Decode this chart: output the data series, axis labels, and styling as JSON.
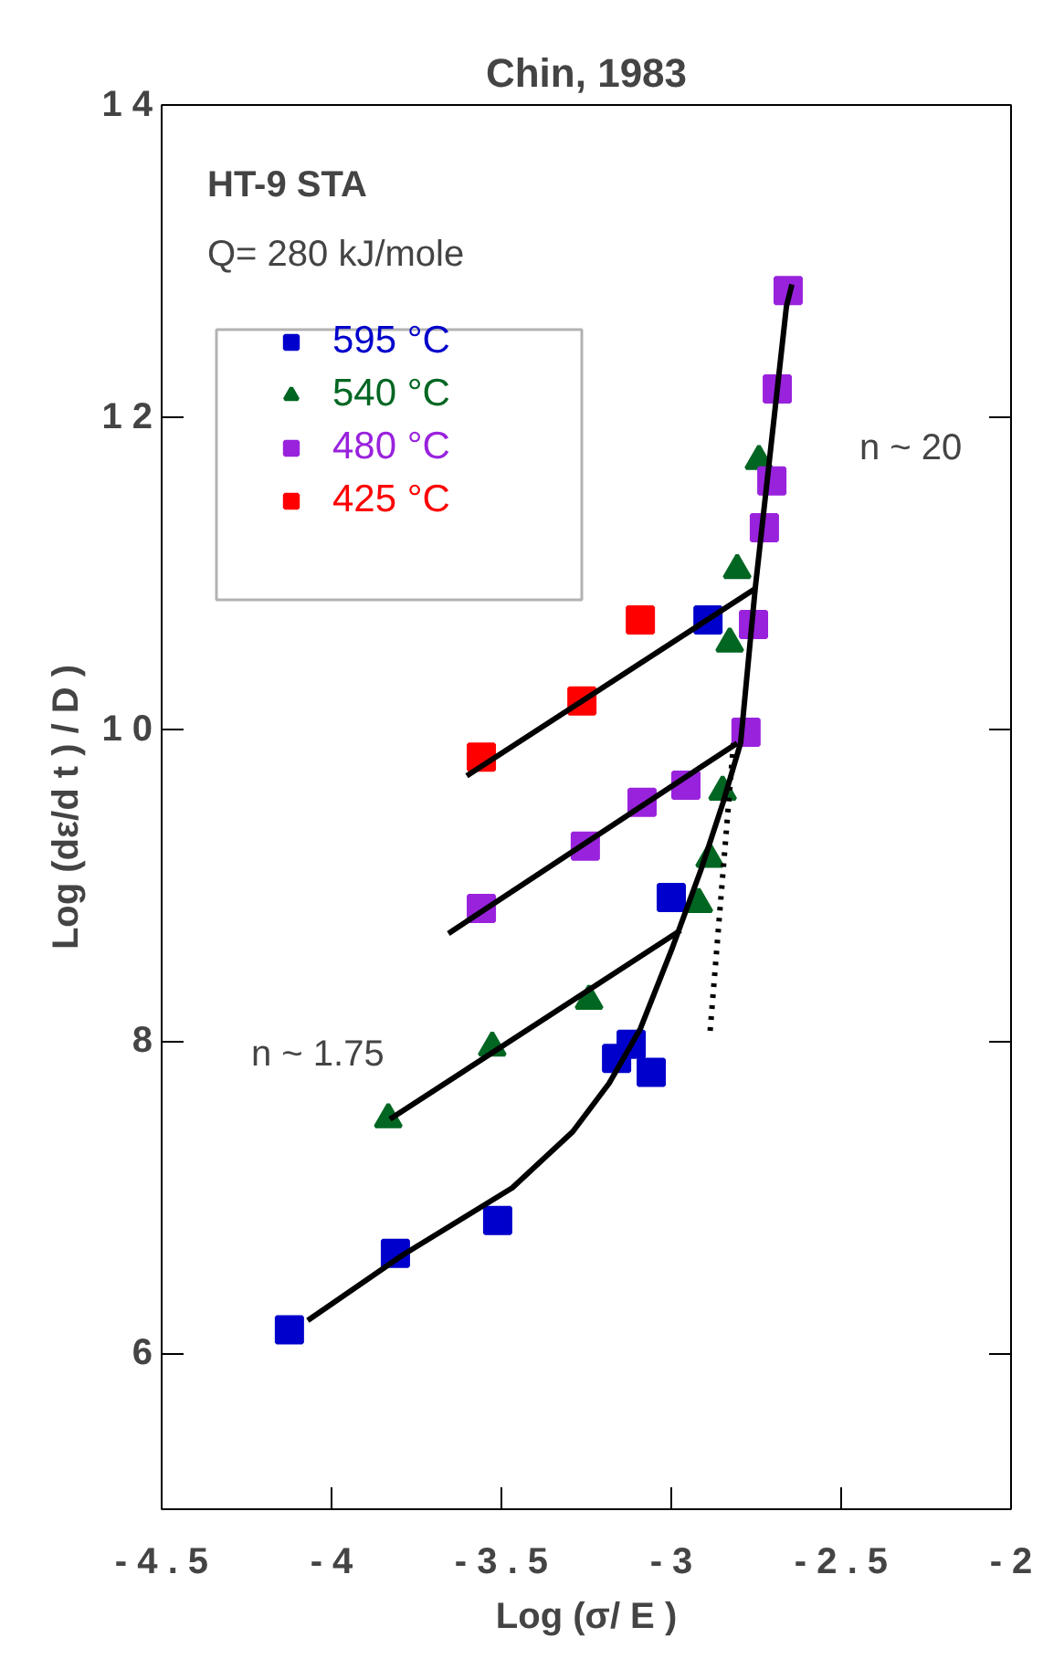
{
  "chart_data": {
    "type": "scatter",
    "title": "Chin, 1983",
    "xlabel": "Log (σ/ E )",
    "ylabel": "Log (dε/d t ) / D )",
    "xlim": [
      -4.5,
      -2
    ],
    "ylim": [
      5,
      14
    ],
    "xticks": [
      {
        "value": -4.5,
        "label": "- 4 . 5"
      },
      {
        "value": -4,
        "label": "- 4"
      },
      {
        "value": -3.5,
        "label": "- 3 . 5"
      },
      {
        "value": -3,
        "label": "- 3"
      },
      {
        "value": -2.5,
        "label": "- 2 . 5"
      },
      {
        "value": -2,
        "label": "- 2"
      }
    ],
    "yticks": [
      6,
      8,
      {
        "value": 10,
        "label": "1 0"
      },
      {
        "value": 12,
        "label": "1 2"
      },
      {
        "value": 14,
        "label": "1 4"
      }
    ],
    "grid": false,
    "legend": "top left",
    "annotations": [
      "HT-9   STA",
      "Q=  280  kJ/mole",
      "n  ~  20",
      "n  ~  1.75"
    ],
    "series": [
      {
        "name": "595 °C",
        "color": "#0000cc",
        "marker": "square",
        "x": [
          -4.124,
          -3.812,
          -3.511,
          -3.161,
          -3.118,
          -3.059,
          -3.0,
          -2.892
        ],
        "values": [
          6.15,
          6.64,
          6.85,
          7.89,
          7.98,
          7.8,
          8.92,
          10.7
        ]
      },
      {
        "name": "540 °C",
        "color": "#006622",
        "marker": "triangle",
        "x": [
          -3.833,
          -3.527,
          -3.242,
          -2.919,
          -2.887,
          -2.849,
          -2.828,
          -2.806,
          -2.742
        ],
        "values": [
          7.5,
          7.96,
          8.26,
          8.88,
          9.17,
          9.6,
          10.55,
          11.02,
          11.72
        ]
      },
      {
        "name": "480 °C",
        "color": "#9922dd",
        "marker": "square",
        "x": [
          -3.559,
          -3.253,
          -3.086,
          -2.957,
          -2.78,
          -2.758,
          -2.726,
          -2.704,
          -2.688,
          -2.656
        ],
        "values": [
          8.85,
          9.25,
          9.53,
          9.64,
          9.98,
          10.67,
          11.29,
          11.59,
          12.18,
          12.81
        ]
      },
      {
        "name": "425 °C",
        "color": "#ff0000",
        "marker": "square",
        "x": [
          -3.559,
          -3.263,
          -3.091
        ],
        "values": [
          9.82,
          10.18,
          10.7
        ]
      },
      {
        "type": "line",
        "color": "#000000",
        "line_style": "solid",
        "x": [
          -3.602,
          -2.753
        ],
        "values": [
          9.7,
          10.9
        ]
      },
      {
        "type": "line",
        "color": "#000000",
        "line_style": "solid",
        "x": [
          -3.656,
          -2.806
        ],
        "values": [
          8.69,
          9.91
        ]
      },
      {
        "type": "line",
        "color": "#000000",
        "line_style": "solid",
        "x": [
          -3.828,
          -2.973
        ],
        "values": [
          7.5,
          8.71
        ]
      },
      {
        "type": "line",
        "color": "#000000",
        "line_style": "solid",
        "x": [
          -4.07,
          -3.79,
          -3.468,
          -3.29,
          -3.183,
          -3.091,
          -3.0,
          -2.914,
          -2.849,
          -2.796,
          -2.753,
          -2.661,
          -2.645
        ],
        "values": [
          6.21,
          6.63,
          7.06,
          7.42,
          7.73,
          8.08,
          8.58,
          9.09,
          9.52,
          9.91,
          10.9,
          12.71,
          12.85
        ]
      },
      {
        "type": "line",
        "color": "#000000",
        "line_style": "dotted",
        "x": [
          -2.817,
          -2.887
        ],
        "values": [
          9.91,
          8.03
        ]
      }
    ]
  }
}
